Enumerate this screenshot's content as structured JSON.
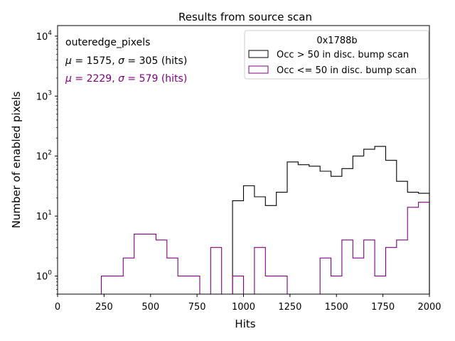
{
  "chart_data": {
    "type": "histogram",
    "title": "Results from source scan",
    "xlabel": "Hits",
    "ylabel": "Number of enabled pixels",
    "xlim": [
      0,
      2000
    ],
    "ylim": [
      0.5,
      15000
    ],
    "yscale": "log",
    "x_ticks": [
      0,
      250,
      500,
      750,
      1000,
      1250,
      1500,
      1750,
      2000
    ],
    "y_ticks": [
      {
        "value": 1,
        "mant": "10",
        "exp": "0"
      },
      {
        "value": 10,
        "mant": "10",
        "exp": "1"
      },
      {
        "value": 100,
        "mant": "10",
        "exp": "2"
      },
      {
        "value": 1000,
        "mant": "10",
        "exp": "3"
      },
      {
        "value": 10000,
        "mant": "10",
        "exp": "4"
      }
    ],
    "grid": false,
    "legend_title": "0x1788b",
    "legend_position": "top-right",
    "bin_edges": [
      0,
      58.8,
      117.6,
      176.5,
      235.3,
      294.1,
      352.9,
      411.8,
      470.6,
      529.4,
      588.2,
      647.1,
      705.9,
      764.7,
      823.5,
      882.4,
      941.2,
      1000,
      1058.8,
      1117.6,
      1176.5,
      1235.3,
      1294.1,
      1352.9,
      1411.8,
      1470.6,
      1529.4,
      1588.2,
      1647.1,
      1705.9,
      1764.7,
      1823.5,
      1882.4,
      1941.2,
      2000
    ],
    "series": [
      {
        "name": "Occ > 50 in disc. bump scan",
        "color": "#000000",
        "values": [
          0,
          0,
          0,
          0,
          0,
          0,
          0,
          0,
          0,
          0,
          0,
          0,
          0,
          0,
          0,
          0,
          18,
          32,
          21,
          15,
          25,
          80,
          72,
          68,
          56,
          46,
          62,
          100,
          130,
          145,
          85,
          38,
          25,
          24
        ]
      },
      {
        "name": "Occ <= 50 in disc. bump scan",
        "color": "#800080",
        "values": [
          0,
          0,
          0,
          0,
          1,
          1,
          2,
          5,
          5,
          4,
          2,
          1,
          1,
          0,
          3,
          0,
          1,
          0,
          3,
          1,
          1,
          0,
          0,
          0,
          2,
          1,
          4,
          2,
          4,
          1,
          3,
          4,
          14,
          17
        ]
      }
    ],
    "annotations": [
      {
        "id": "name",
        "text": "outeredge_pixels",
        "color": "#000000"
      },
      {
        "id": "stats_black",
        "mu": "1575",
        "sigma": "305",
        "unit": "(hits)",
        "color": "#000000"
      },
      {
        "id": "stats_purple",
        "mu": "2229",
        "sigma": "579",
        "unit": "(hits)",
        "color": "#800080"
      }
    ]
  }
}
